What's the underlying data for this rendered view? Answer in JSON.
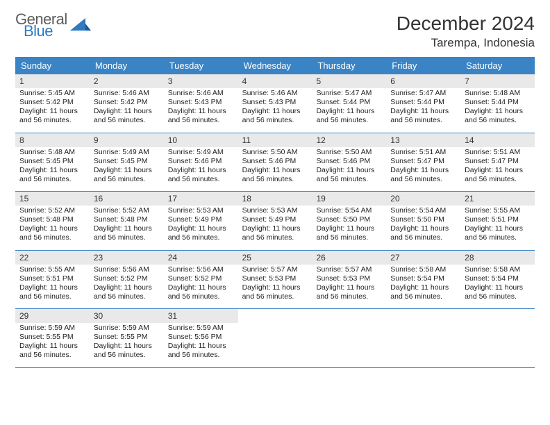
{
  "logo": {
    "general": "General",
    "blue": "Blue"
  },
  "title": "December 2024",
  "location": "Tarempa, Indonesia",
  "colors": {
    "header_bg": "#3a84c5",
    "header_text": "#ffffff",
    "daynum_bg": "#e9e9e9",
    "row_border": "#3a84c5",
    "text": "#222222",
    "logo_gray": "#5c5c5c",
    "logo_blue": "#2f7ac0"
  },
  "fonts": {
    "title_size": 28,
    "location_size": 17,
    "header_size": 13,
    "daynum_size": 12,
    "body_size": 10.5
  },
  "day_headers": [
    "Sunday",
    "Monday",
    "Tuesday",
    "Wednesday",
    "Thursday",
    "Friday",
    "Saturday"
  ],
  "weeks": [
    [
      {
        "n": "1",
        "sr": "Sunrise: 5:45 AM",
        "ss": "Sunset: 5:42 PM",
        "d1": "Daylight: 11 hours",
        "d2": "and 56 minutes."
      },
      {
        "n": "2",
        "sr": "Sunrise: 5:46 AM",
        "ss": "Sunset: 5:42 PM",
        "d1": "Daylight: 11 hours",
        "d2": "and 56 minutes."
      },
      {
        "n": "3",
        "sr": "Sunrise: 5:46 AM",
        "ss": "Sunset: 5:43 PM",
        "d1": "Daylight: 11 hours",
        "d2": "and 56 minutes."
      },
      {
        "n": "4",
        "sr": "Sunrise: 5:46 AM",
        "ss": "Sunset: 5:43 PM",
        "d1": "Daylight: 11 hours",
        "d2": "and 56 minutes."
      },
      {
        "n": "5",
        "sr": "Sunrise: 5:47 AM",
        "ss": "Sunset: 5:44 PM",
        "d1": "Daylight: 11 hours",
        "d2": "and 56 minutes."
      },
      {
        "n": "6",
        "sr": "Sunrise: 5:47 AM",
        "ss": "Sunset: 5:44 PM",
        "d1": "Daylight: 11 hours",
        "d2": "and 56 minutes."
      },
      {
        "n": "7",
        "sr": "Sunrise: 5:48 AM",
        "ss": "Sunset: 5:44 PM",
        "d1": "Daylight: 11 hours",
        "d2": "and 56 minutes."
      }
    ],
    [
      {
        "n": "8",
        "sr": "Sunrise: 5:48 AM",
        "ss": "Sunset: 5:45 PM",
        "d1": "Daylight: 11 hours",
        "d2": "and 56 minutes."
      },
      {
        "n": "9",
        "sr": "Sunrise: 5:49 AM",
        "ss": "Sunset: 5:45 PM",
        "d1": "Daylight: 11 hours",
        "d2": "and 56 minutes."
      },
      {
        "n": "10",
        "sr": "Sunrise: 5:49 AM",
        "ss": "Sunset: 5:46 PM",
        "d1": "Daylight: 11 hours",
        "d2": "and 56 minutes."
      },
      {
        "n": "11",
        "sr": "Sunrise: 5:50 AM",
        "ss": "Sunset: 5:46 PM",
        "d1": "Daylight: 11 hours",
        "d2": "and 56 minutes."
      },
      {
        "n": "12",
        "sr": "Sunrise: 5:50 AM",
        "ss": "Sunset: 5:46 PM",
        "d1": "Daylight: 11 hours",
        "d2": "and 56 minutes."
      },
      {
        "n": "13",
        "sr": "Sunrise: 5:51 AM",
        "ss": "Sunset: 5:47 PM",
        "d1": "Daylight: 11 hours",
        "d2": "and 56 minutes."
      },
      {
        "n": "14",
        "sr": "Sunrise: 5:51 AM",
        "ss": "Sunset: 5:47 PM",
        "d1": "Daylight: 11 hours",
        "d2": "and 56 minutes."
      }
    ],
    [
      {
        "n": "15",
        "sr": "Sunrise: 5:52 AM",
        "ss": "Sunset: 5:48 PM",
        "d1": "Daylight: 11 hours",
        "d2": "and 56 minutes."
      },
      {
        "n": "16",
        "sr": "Sunrise: 5:52 AM",
        "ss": "Sunset: 5:48 PM",
        "d1": "Daylight: 11 hours",
        "d2": "and 56 minutes."
      },
      {
        "n": "17",
        "sr": "Sunrise: 5:53 AM",
        "ss": "Sunset: 5:49 PM",
        "d1": "Daylight: 11 hours",
        "d2": "and 56 minutes."
      },
      {
        "n": "18",
        "sr": "Sunrise: 5:53 AM",
        "ss": "Sunset: 5:49 PM",
        "d1": "Daylight: 11 hours",
        "d2": "and 56 minutes."
      },
      {
        "n": "19",
        "sr": "Sunrise: 5:54 AM",
        "ss": "Sunset: 5:50 PM",
        "d1": "Daylight: 11 hours",
        "d2": "and 56 minutes."
      },
      {
        "n": "20",
        "sr": "Sunrise: 5:54 AM",
        "ss": "Sunset: 5:50 PM",
        "d1": "Daylight: 11 hours",
        "d2": "and 56 minutes."
      },
      {
        "n": "21",
        "sr": "Sunrise: 5:55 AM",
        "ss": "Sunset: 5:51 PM",
        "d1": "Daylight: 11 hours",
        "d2": "and 56 minutes."
      }
    ],
    [
      {
        "n": "22",
        "sr": "Sunrise: 5:55 AM",
        "ss": "Sunset: 5:51 PM",
        "d1": "Daylight: 11 hours",
        "d2": "and 56 minutes."
      },
      {
        "n": "23",
        "sr": "Sunrise: 5:56 AM",
        "ss": "Sunset: 5:52 PM",
        "d1": "Daylight: 11 hours",
        "d2": "and 56 minutes."
      },
      {
        "n": "24",
        "sr": "Sunrise: 5:56 AM",
        "ss": "Sunset: 5:52 PM",
        "d1": "Daylight: 11 hours",
        "d2": "and 56 minutes."
      },
      {
        "n": "25",
        "sr": "Sunrise: 5:57 AM",
        "ss": "Sunset: 5:53 PM",
        "d1": "Daylight: 11 hours",
        "d2": "and 56 minutes."
      },
      {
        "n": "26",
        "sr": "Sunrise: 5:57 AM",
        "ss": "Sunset: 5:53 PM",
        "d1": "Daylight: 11 hours",
        "d2": "and 56 minutes."
      },
      {
        "n": "27",
        "sr": "Sunrise: 5:58 AM",
        "ss": "Sunset: 5:54 PM",
        "d1": "Daylight: 11 hours",
        "d2": "and 56 minutes."
      },
      {
        "n": "28",
        "sr": "Sunrise: 5:58 AM",
        "ss": "Sunset: 5:54 PM",
        "d1": "Daylight: 11 hours",
        "d2": "and 56 minutes."
      }
    ],
    [
      {
        "n": "29",
        "sr": "Sunrise: 5:59 AM",
        "ss": "Sunset: 5:55 PM",
        "d1": "Daylight: 11 hours",
        "d2": "and 56 minutes."
      },
      {
        "n": "30",
        "sr": "Sunrise: 5:59 AM",
        "ss": "Sunset: 5:55 PM",
        "d1": "Daylight: 11 hours",
        "d2": "and 56 minutes."
      },
      {
        "n": "31",
        "sr": "Sunrise: 5:59 AM",
        "ss": "Sunset: 5:56 PM",
        "d1": "Daylight: 11 hours",
        "d2": "and 56 minutes."
      },
      null,
      null,
      null,
      null
    ]
  ]
}
